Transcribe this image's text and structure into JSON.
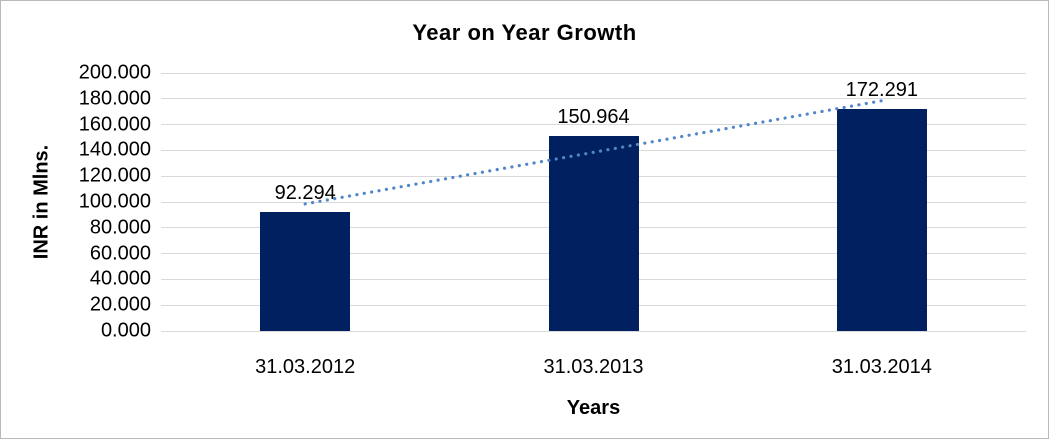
{
  "chart_data": {
    "type": "bar",
    "title": "Year on Year Growth",
    "xlabel": "Years",
    "ylabel": "INR in Mlns.",
    "categories": [
      "31.03.2012",
      "31.03.2013",
      "31.03.2014"
    ],
    "values": [
      92.294,
      150.964,
      172.291
    ],
    "data_labels": [
      "92.294",
      "150.964",
      "172.291"
    ],
    "ylim": [
      0,
      200
    ],
    "ytick_step": 20,
    "ytick_labels": [
      "0.000",
      "20.000",
      "40.000",
      "60.000",
      "80.000",
      "100.000",
      "120.000",
      "140.000",
      "160.000",
      "180.000",
      "200.000"
    ],
    "grid": true,
    "legend": "none",
    "trendline": {
      "type": "linear",
      "style": "dotted",
      "color": "#4f86c6"
    },
    "colors": {
      "bar": "#002060",
      "gridline": "#d9d9d9",
      "text": "#000000",
      "background": "#ffffff"
    }
  }
}
